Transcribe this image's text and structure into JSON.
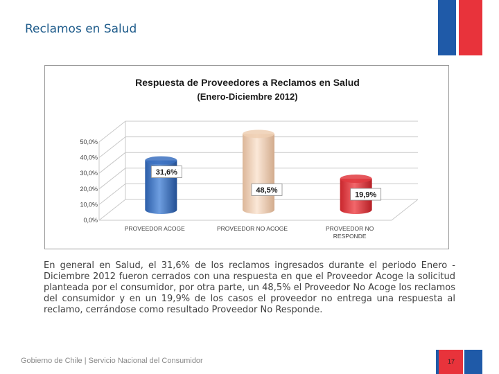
{
  "slide": {
    "title": "Reclamos en Salud",
    "body": "En general en Salud, el 31,6% de los reclamos ingresados durante el periodo Enero -Diciembre 2012 fueron cerrados con una respuesta en que el Proveedor Acoge la solicitud planteada por el consumidor, por otra parte, un 48,5% el Proveedor No Acoge los reclamos del consumidor y en un 19,9% de los casos el proveedor no entrega una respuesta al reclamo, cerrándose como resultado Proveedor No Responde.",
    "footer_org": "Gobierno de Chile | Servicio Nacional del Consumidor",
    "page_number": "17"
  },
  "colors": {
    "flag_blue": "#1f5aa8",
    "flag_red": "#e8333b",
    "bar_acoge": "#3b70bf",
    "bar_no_acoge": "#efcfb3",
    "bar_no_responde": "#e13a3f"
  },
  "chart_data": {
    "type": "bar",
    "style": "3d-cylinder",
    "title": "Respuesta de Proveedores a Reclamos en Salud",
    "subtitle": "(Enero-Diciembre 2012)",
    "categories": [
      "PROVEEDOR ACOGE",
      "PROVEEDOR NO ACOGE",
      "PROVEEDOR NO RESPONDE"
    ],
    "category_lines": [
      [
        "PROVEEDOR ACOGE"
      ],
      [
        "PROVEEDOR NO ACOGE"
      ],
      [
        "PROVEEDOR NO",
        "RESPONDE"
      ]
    ],
    "values": [
      31.6,
      48.5,
      19.9
    ],
    "data_labels": [
      "31,6%",
      "48,5%",
      "19,9%"
    ],
    "y_ticks": [
      "0,0%",
      "10,0%",
      "20,0%",
      "30,0%",
      "40,0%",
      "50,0%"
    ],
    "y_tick_values": [
      0,
      10,
      20,
      30,
      40,
      50
    ],
    "ylim": [
      0,
      50
    ],
    "xlabel": "",
    "ylabel": "",
    "grid": true,
    "legend": "none"
  }
}
